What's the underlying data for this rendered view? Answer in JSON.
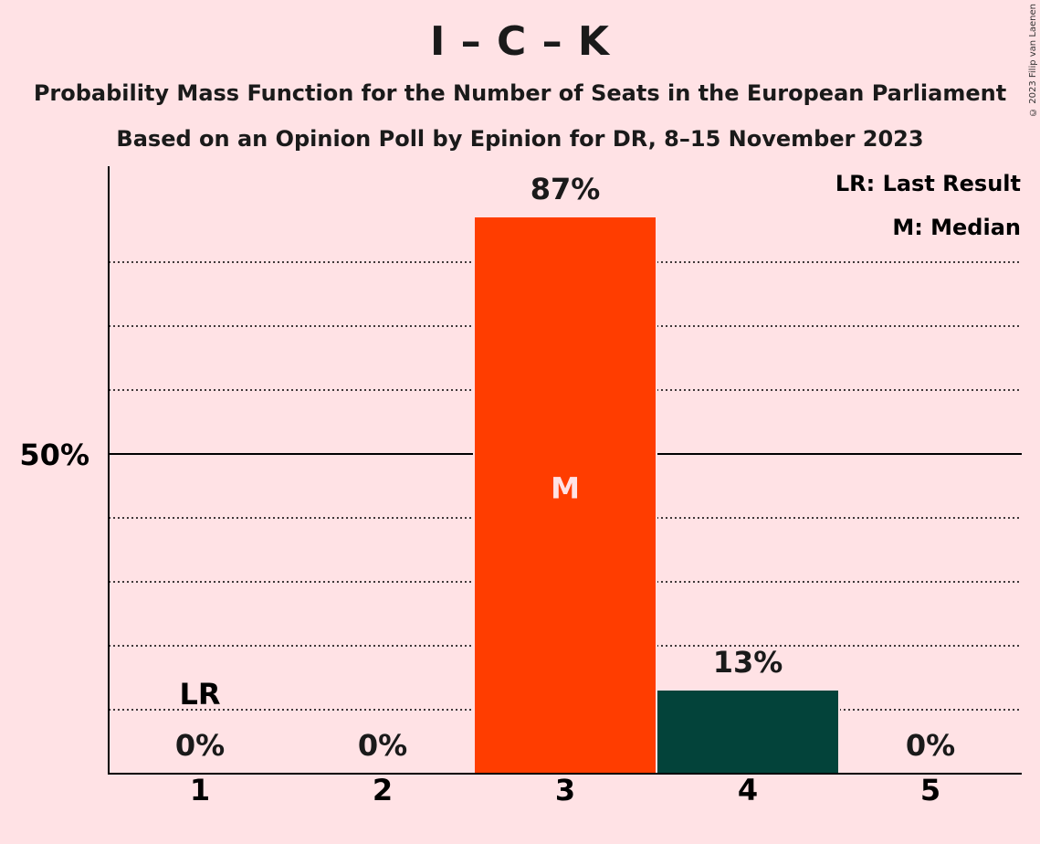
{
  "title": "I – C – K",
  "subtitle_1": "Probability Mass Function for the Number of Seats in the European Parliament",
  "subtitle_2": "Based on an Opinion Poll by Epinion for DR, 8–15 November 2023",
  "copyright": "© 2023 Filip van Laenen",
  "legend": {
    "last_result": "LR: Last Result",
    "median": "M: Median"
  },
  "colors": {
    "background": "#FFE2E5",
    "median_bar": "#FF3D00",
    "other_bar": "#03433A",
    "median_label": "#FFE2E5"
  },
  "chart_data": {
    "type": "bar",
    "categories": [
      "1",
      "2",
      "3",
      "4",
      "5"
    ],
    "values": [
      0,
      0,
      87,
      13,
      0
    ],
    "value_labels": [
      "0%",
      "0%",
      "87%",
      "13%",
      "0%"
    ],
    "ylim": [
      0,
      95
    ],
    "y_ticks": [
      {
        "value": 50,
        "label": "50%"
      }
    ],
    "y_gridlines": [
      10,
      20,
      30,
      40,
      60,
      70,
      80
    ],
    "median_category": "3",
    "median_marker": "M",
    "last_result_category": "1",
    "last_result_marker": "LR",
    "grid": true,
    "legend_position": "top-right"
  }
}
